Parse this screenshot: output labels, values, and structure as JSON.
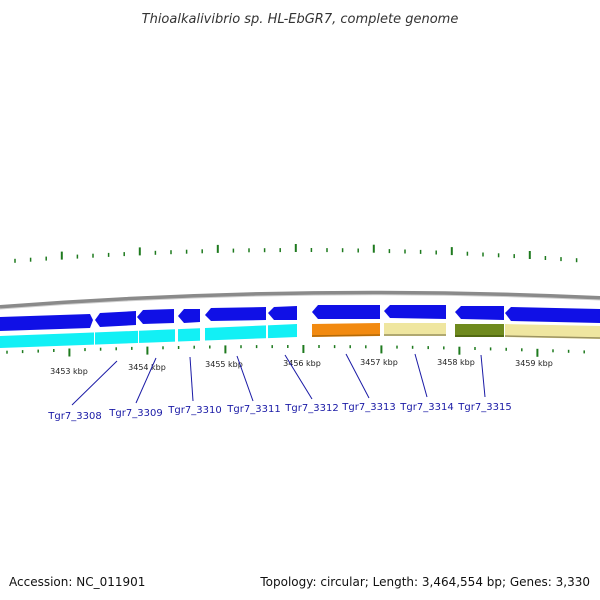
{
  "title": "Thioalkalivibrio sp. HL-EbGR7, complete genome",
  "footer": {
    "accession": "Accession: NC_011901",
    "summary": "Topology: circular; Length: 3,464,554 bp; Genes: 3,330"
  },
  "tick_labels": [
    {
      "label": "3453 kbp",
      "x": 3453
    },
    {
      "label": "3454 kbp",
      "x": 3454
    },
    {
      "label": "3455 kbp",
      "x": 3455
    },
    {
      "label": "3456 kbp",
      "x": 3456
    },
    {
      "label": "3457 kbp",
      "x": 3457
    },
    {
      "label": "3458 kbp",
      "x": 3458
    },
    {
      "label": "3459 kbp",
      "x": 3459
    }
  ],
  "genes": [
    {
      "label": "Tgr7_3308"
    },
    {
      "label": "Tgr7_3309"
    },
    {
      "label": "Tgr7_3310"
    },
    {
      "label": "Tgr7_3311"
    },
    {
      "label": "Tgr7_3312"
    },
    {
      "label": "Tgr7_3313"
    },
    {
      "label": "Tgr7_3314"
    },
    {
      "label": "Tgr7_3315"
    }
  ],
  "colors": {
    "backbone": "#8c8c8c",
    "cds_strand": "#1010e6",
    "cyan_track": "#12f0f5",
    "orange_track": "#f28a10",
    "khaki_track": "#efe6a0",
    "olive_track": "#6f8a1e",
    "tick": "#1e7a1e",
    "label_blue": "#1a1aa6"
  }
}
